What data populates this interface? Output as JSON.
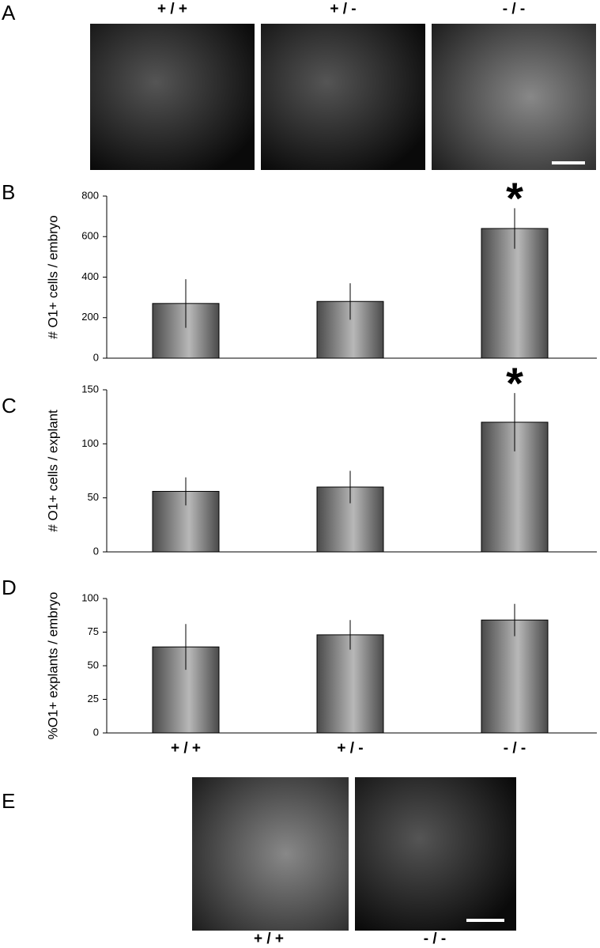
{
  "figure": {
    "panels": [
      "A",
      "B",
      "C",
      "D",
      "E"
    ],
    "top_images": [
      "+ / +",
      "+ / -",
      "- / -"
    ],
    "bottom_images": [
      "+ / +",
      "- / -"
    ]
  },
  "chart_data": [
    {
      "type": "bar",
      "ylabel": "# O1+ cells / embryo",
      "categories": [
        null,
        null,
        null
      ],
      "values": [
        270,
        280,
        640
      ],
      "errors": [
        120,
        90,
        100
      ],
      "significance": [
        null,
        null,
        "*"
      ],
      "ylim": [
        0,
        800
      ],
      "yticks": [
        0,
        200,
        400,
        600,
        800
      ],
      "color": "#8a8a8a"
    },
    {
      "type": "bar",
      "ylabel": "# O1+ cells / explant",
      "categories": [
        null,
        null,
        null
      ],
      "values": [
        56,
        60,
        120
      ],
      "errors": [
        13,
        15,
        27
      ],
      "significance": [
        null,
        null,
        "*"
      ],
      "ylim": [
        0,
        150
      ],
      "yticks": [
        0,
        50,
        100,
        150
      ],
      "color": "#8a8a8a"
    },
    {
      "type": "bar",
      "ylabel": "%O1+ explants / embryo",
      "categories": [
        "+ / +",
        "+ / -",
        "- / -"
      ],
      "values": [
        64,
        73,
        84
      ],
      "errors": [
        17,
        11,
        12
      ],
      "significance": [
        null,
        null,
        null
      ],
      "ylim": [
        0,
        100
      ],
      "yticks": [
        0,
        25,
        50,
        75,
        100
      ],
      "color": "#8a8a8a"
    }
  ]
}
